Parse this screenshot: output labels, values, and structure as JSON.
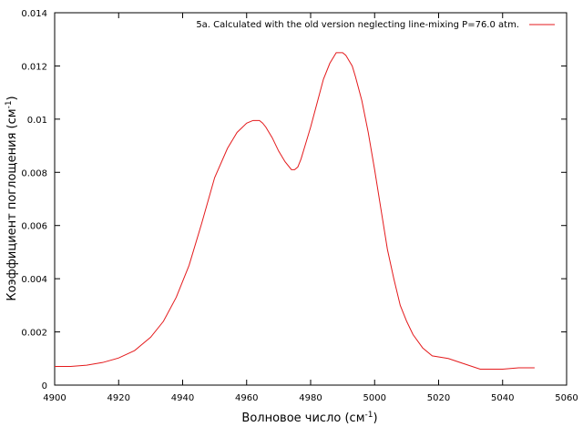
{
  "chart_data": {
    "type": "line",
    "xlabel": "Волновое число (см",
    "xlabel_sup": "-1",
    "xlabel_end": ")",
    "ylabel": "Коэффициент поглощения (см",
    "ylabel_sup": "-1",
    "ylabel_end": ")",
    "xlim": [
      4900,
      5060
    ],
    "ylim": [
      0,
      0.014
    ],
    "xticks": [
      4900,
      4920,
      4940,
      4960,
      4980,
      5000,
      5020,
      5040,
      5060
    ],
    "yticks": [
      0,
      0.002,
      0.004,
      0.006,
      0.008,
      0.01,
      0.012,
      0.014
    ],
    "ytick_labels": [
      "0",
      "0.002",
      "0.004",
      "0.006",
      "0.008",
      "0.01",
      "0.012",
      "0.014"
    ],
    "grid": false,
    "legend_position": "top-right",
    "series": [
      {
        "name": "5a. Calculated with the old  version neglecting line-mixing  P=76.0 atm.",
        "color": "#e41a1c",
        "x": [
          4900,
          4905,
          4910,
          4915,
          4920,
          4925,
          4930,
          4934,
          4938,
          4942,
          4946,
          4950,
          4954,
          4957,
          4960,
          4962,
          4964,
          4965,
          4966,
          4968,
          4970,
          4972,
          4974,
          4975,
          4976,
          4977,
          4978,
          4980,
          4982,
          4984,
          4986,
          4988,
          4989,
          4990,
          4991,
          4992,
          4993,
          4994,
          4996,
          4998,
          5000,
          5002,
          5004,
          5006,
          5008,
          5010,
          5012,
          5015,
          5018,
          5023,
          5028,
          5033,
          5037,
          5040,
          5045,
          5050
        ],
        "y": [
          0.0007,
          0.0007,
          0.00075,
          0.00085,
          0.00102,
          0.0013,
          0.0018,
          0.0024,
          0.0033,
          0.0045,
          0.0061,
          0.0078,
          0.0089,
          0.0095,
          0.00985,
          0.00995,
          0.00995,
          0.00985,
          0.0097,
          0.0093,
          0.0088,
          0.0084,
          0.0081,
          0.0081,
          0.0082,
          0.0085,
          0.0089,
          0.0097,
          0.0106,
          0.0115,
          0.0121,
          0.0125,
          0.0125,
          0.0125,
          0.0124,
          0.0122,
          0.012,
          0.0116,
          0.0107,
          0.0095,
          0.0081,
          0.0066,
          0.0051,
          0.004,
          0.003,
          0.0024,
          0.0019,
          0.0014,
          0.0011,
          0.001,
          0.0008,
          0.0006,
          0.0006,
          0.0006,
          0.00065,
          0.00065
        ]
      }
    ]
  }
}
